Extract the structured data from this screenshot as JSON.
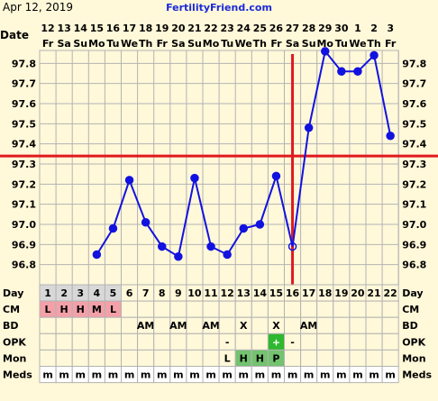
{
  "header": {
    "date_text": "Apr 12, 2019",
    "site_name": "FertilityFriend.com"
  },
  "colors": {
    "background": "#fff8d9",
    "grid": "#b3b3b3",
    "temp_line": "#1212e0",
    "coverline": "#e0191f",
    "site_name": "#1a2ad8",
    "cm_cell": "#f3a0a8",
    "mon_cell": "#73c36f",
    "opk_cell": "#2eb82e",
    "label_cell": "#d8d8d8",
    "meds_cell": "#ffffff"
  },
  "chart_data": {
    "type": "line",
    "date_row_label": "Date",
    "dates": [
      "12",
      "13",
      "14",
      "15",
      "16",
      "17",
      "18",
      "19",
      "20",
      "21",
      "22",
      "23",
      "24",
      "25",
      "26",
      "27",
      "28",
      "29",
      "30",
      "1",
      "2",
      "3"
    ],
    "weekdays": [
      "Fr",
      "Sa",
      "Su",
      "Mo",
      "Tu",
      "We",
      "Th",
      "Fr",
      "Sa",
      "Su",
      "Mo",
      "Tu",
      "We",
      "Th",
      "Fr",
      "Sa",
      "Su",
      "Mo",
      "Tu",
      "We",
      "Th",
      "Fr"
    ],
    "y_ticks": [
      "97.8",
      "97.7",
      "97.6",
      "97.5",
      "97.4",
      "97.3",
      "97.2",
      "97.1",
      "97.0",
      "96.9",
      "96.8"
    ],
    "ylim": [
      96.7,
      97.9
    ],
    "temps": [
      null,
      null,
      null,
      96.85,
      96.98,
      97.22,
      97.01,
      96.89,
      96.84,
      97.23,
      96.89,
      96.85,
      96.98,
      97.0,
      97.24,
      96.89,
      97.48,
      97.86,
      97.76,
      97.76,
      97.84,
      97.44
    ],
    "coverline": 97.34,
    "ovulation_day": 16
  },
  "table": {
    "day": {
      "label": "Day",
      "values": [
        "1",
        "2",
        "3",
        "4",
        "5",
        "6",
        "7",
        "8",
        "9",
        "10",
        "11",
        "12",
        "13",
        "14",
        "15",
        "16",
        "17",
        "18",
        "19",
        "20",
        "21",
        "22"
      ]
    },
    "cm": {
      "label": "CM",
      "values": [
        "L",
        "H",
        "H",
        "M",
        "L",
        "",
        "",
        "",
        "",
        "",
        "",
        "",
        "",
        "",
        "",
        "",
        "",
        "",
        "",
        "",
        "",
        ""
      ]
    },
    "bd": {
      "label": "BD",
      "values": [
        "",
        "",
        "",
        "",
        "",
        "",
        "AM",
        "",
        "AM",
        "",
        "AM",
        "",
        "X",
        "",
        "X",
        "",
        "AM",
        "",
        "",
        "",
        "",
        ""
      ]
    },
    "opk": {
      "label": "OPK",
      "values": [
        "",
        "",
        "",
        "",
        "",
        "",
        "",
        "",
        "",
        "",
        "",
        "-",
        "",
        "",
        "+",
        "-",
        "",
        "",
        "",
        "",
        "",
        ""
      ]
    },
    "mon": {
      "label": "Mon",
      "values": [
        "",
        "",
        "",
        "",
        "",
        "",
        "",
        "",
        "",
        "",
        "",
        "L",
        "H",
        "H",
        "P",
        "",
        "",
        "",
        "",
        "",
        "",
        ""
      ]
    },
    "meds": {
      "label": "Meds",
      "values": [
        "m",
        "m",
        "m",
        "m",
        "m",
        "m",
        "m",
        "m",
        "m",
        "m",
        "m",
        "m",
        "m",
        "m",
        "m",
        "m",
        "m",
        "m",
        "m",
        "m",
        "m",
        "m"
      ]
    }
  }
}
